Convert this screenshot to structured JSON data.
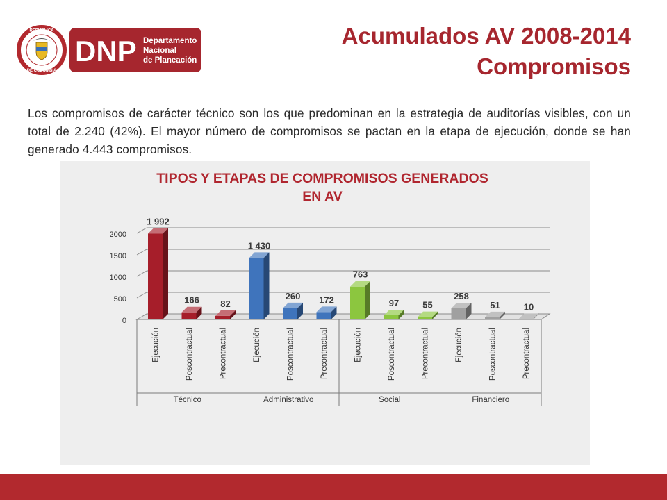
{
  "header": {
    "title_line1": "Acumulados AV 2008-2014",
    "title_line2": "Compromisos",
    "logo": {
      "acronym": "DNP",
      "name_lines": [
        "Departamento",
        "Nacional",
        "de Planeación"
      ],
      "seal_top": "REPÚBLICA",
      "seal_bottom": "DE COLOMBIA"
    }
  },
  "body": {
    "intro": "Los compromisos de carácter técnico son los que predominan en la estrategia de auditorías visibles, con un total de 2.240 (42%). El mayor número de compromisos se pactan en la etapa de ejecución, donde se han generado 4.443 compromisos."
  },
  "chart_data": {
    "type": "bar",
    "title_lines": [
      "TIPOS  Y ETAPAS DE COMPROMISOS GENERADOS",
      "EN AV"
    ],
    "groups": [
      "Técnico",
      "Administrativo",
      "Social",
      "Financiero"
    ],
    "categories": [
      "Ejecución",
      "Poscontractual",
      "Precontractual"
    ],
    "values": [
      [
        1992,
        166,
        82
      ],
      [
        1430,
        260,
        172
      ],
      [
        763,
        97,
        55
      ],
      [
        258,
        51,
        10
      ]
    ],
    "data_labels": [
      [
        "1 992",
        "166",
        "82"
      ],
      [
        "1 430",
        "260",
        "172"
      ],
      [
        "763",
        "97",
        "55"
      ],
      [
        "258",
        "51",
        "10"
      ]
    ],
    "group_colors": [
      "#A61E2A",
      "#3F74BC",
      "#8CC63F",
      "#A0A0A0"
    ],
    "y_ticks": [
      0,
      500,
      1000,
      1500,
      2000
    ],
    "ylim": [
      0,
      2000
    ],
    "grid": true,
    "legend": "none"
  },
  "colors": {
    "accent": "#A6262E",
    "footer": "#B2292E",
    "chart_title": "#B0262F",
    "panel": "#EEEEEE"
  }
}
